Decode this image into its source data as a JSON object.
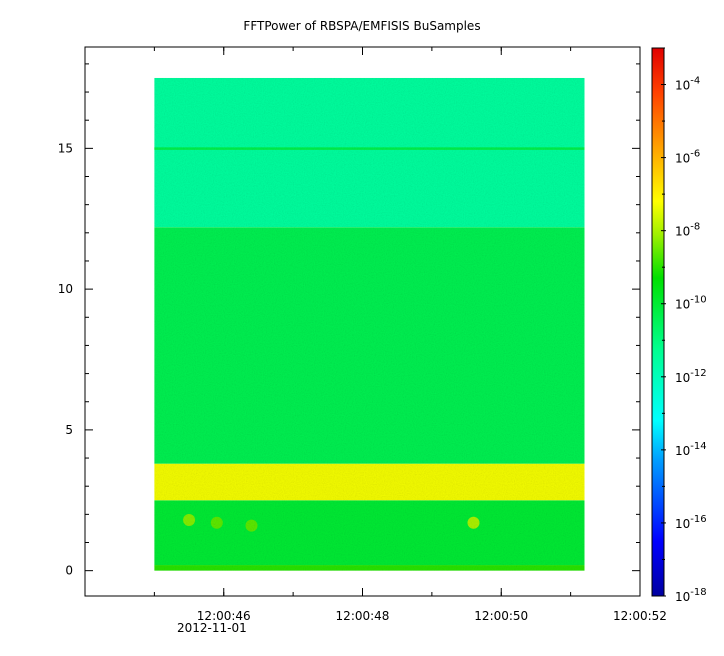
{
  "chart_data": {
    "type": "heatmap",
    "title": "FFTPower of RBSPA/EMFISIS  BuSamples",
    "xlabel": "",
    "ylabel": "",
    "date_label": "2012-11-01",
    "x_range": [
      "12:00:44.0",
      "12:00:52.0"
    ],
    "x_ticks": [
      "12:00:46",
      "12:00:48",
      "12:00:50",
      "12:00:52"
    ],
    "y_range": [
      -0.9,
      18.6
    ],
    "y_ticks": [
      0,
      5,
      10,
      15
    ],
    "data_time_range": [
      "12:00:45.0",
      "12:00:51.2"
    ],
    "data_y_range": [
      0,
      17.5
    ],
    "colorbar": {
      "scale": "log",
      "range": [
        1e-18,
        0.001
      ],
      "tick_exponents": [
        -18,
        -16,
        -14,
        -12,
        -10,
        -8,
        -6,
        -4
      ],
      "tick_base": "10"
    },
    "bands": [
      {
        "y_from": 0.0,
        "y_to": 0.2,
        "log10_power": -9.0
      },
      {
        "y_from": 0.2,
        "y_to": 2.5,
        "log10_power": -10.0
      },
      {
        "y_from": 2.5,
        "y_to": 3.8,
        "log10_power": -7.3
      },
      {
        "y_from": 3.8,
        "y_to": 12.2,
        "log10_power": -10.4
      },
      {
        "y_from": 12.2,
        "y_to": 17.5,
        "log10_power": -11.5
      }
    ],
    "line_features": [
      {
        "y": 15.0,
        "log10_power": -10.3
      }
    ],
    "spots": [
      {
        "time": "12:00:45.5",
        "y": 1.8,
        "log10_power": -8.3
      },
      {
        "time": "12:00:45.9",
        "y": 1.7,
        "log10_power": -8.6
      },
      {
        "time": "12:00:46.4",
        "y": 1.6,
        "log10_power": -8.6
      },
      {
        "time": "12:00:49.6",
        "y": 1.7,
        "log10_power": -8.0
      }
    ]
  }
}
